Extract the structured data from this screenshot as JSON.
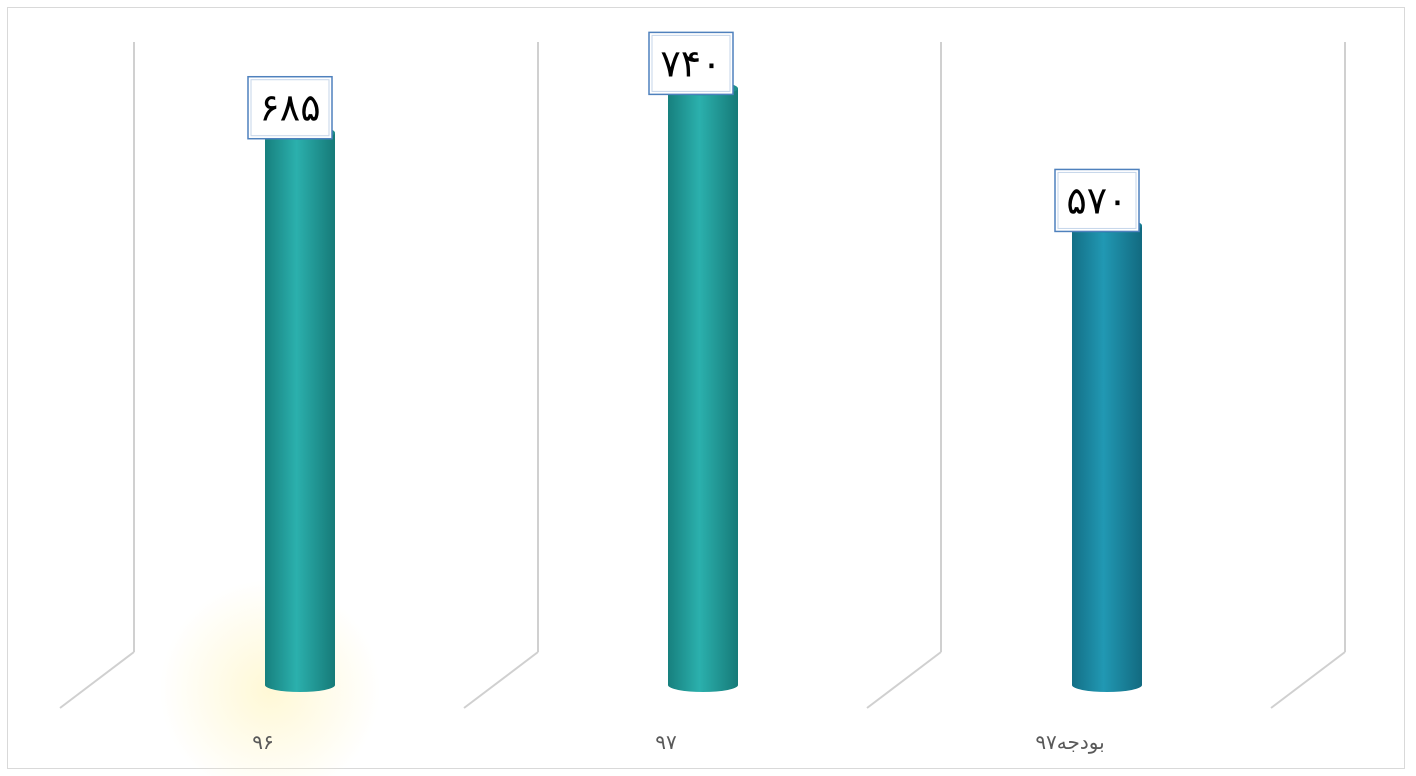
{
  "chart_data": {
    "type": "bar",
    "style": "3d-cylinder",
    "categories": [
      "۹۶",
      "۹۷",
      "بودجه۹۷"
    ],
    "values": [
      685,
      740,
      570
    ],
    "data_labels": [
      "۶۸۵",
      "۷۴۰",
      "۵۷۰"
    ],
    "title": "",
    "xlabel": "",
    "ylabel": "",
    "ylim": [
      0,
      800
    ],
    "grid": false,
    "legend": "none",
    "colors": {
      "bar_light": "#2aa9a6",
      "bar_dark": "#17807e",
      "bar_alt_light": "#1f93ad",
      "bar_alt_dark": "#136f86",
      "label_border": "#4f81bd",
      "wall_line": "#d0d0d0"
    }
  }
}
